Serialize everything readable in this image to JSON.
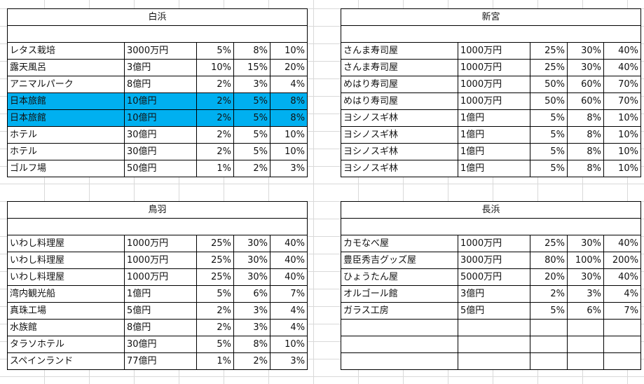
{
  "blocks": [
    {
      "id": "shirahama",
      "title": "白浜",
      "rows": [
        {
          "name": "レタス栽培",
          "cost": "3000万円",
          "p1": "5%",
          "p2": "8%",
          "p3": "10%",
          "hl": false
        },
        {
          "name": "露天風呂",
          "cost": "3億円",
          "p1": "10%",
          "p2": "15%",
          "p3": "20%",
          "hl": false
        },
        {
          "name": "アニマルパーク",
          "cost": "8億円",
          "p1": "2%",
          "p2": "3%",
          "p3": "4%",
          "hl": false
        },
        {
          "name": "日本旅館",
          "cost": "10億円",
          "p1": "2%",
          "p2": "5%",
          "p3": "8%",
          "hl": true
        },
        {
          "name": "日本旅館",
          "cost": "10億円",
          "p1": "2%",
          "p2": "5%",
          "p3": "8%",
          "hl": true
        },
        {
          "name": "ホテル",
          "cost": "30億円",
          "p1": "2%",
          "p2": "5%",
          "p3": "10%",
          "hl": false
        },
        {
          "name": "ホテル",
          "cost": "30億円",
          "p1": "2%",
          "p2": "5%",
          "p3": "10%",
          "hl": false
        },
        {
          "name": "ゴルフ場",
          "cost": "50億円",
          "p1": "1%",
          "p2": "2%",
          "p3": "3%",
          "hl": false
        }
      ]
    },
    {
      "id": "shingu",
      "title": "新宮",
      "rows": [
        {
          "name": "さんま寿司屋",
          "cost": "1000万円",
          "p1": "25%",
          "p2": "30%",
          "p3": "40%",
          "hl": false
        },
        {
          "name": "さんま寿司屋",
          "cost": "1000万円",
          "p1": "25%",
          "p2": "30%",
          "p3": "40%",
          "hl": false
        },
        {
          "name": "めはり寿司屋",
          "cost": "1000万円",
          "p1": "50%",
          "p2": "60%",
          "p3": "70%",
          "hl": false
        },
        {
          "name": "めはり寿司屋",
          "cost": "1000万円",
          "p1": "50%",
          "p2": "60%",
          "p3": "70%",
          "hl": false
        },
        {
          "name": "ヨシノスギ林",
          "cost": "1億円",
          "p1": "5%",
          "p2": "8%",
          "p3": "10%",
          "hl": false
        },
        {
          "name": "ヨシノスギ林",
          "cost": "1億円",
          "p1": "5%",
          "p2": "8%",
          "p3": "10%",
          "hl": false
        },
        {
          "name": "ヨシノスギ林",
          "cost": "1億円",
          "p1": "5%",
          "p2": "8%",
          "p3": "10%",
          "hl": false
        },
        {
          "name": "ヨシノスギ林",
          "cost": "1億円",
          "p1": "5%",
          "p2": "8%",
          "p3": "10%",
          "hl": false
        }
      ]
    },
    {
      "id": "toba",
      "title": "鳥羽",
      "rows": [
        {
          "name": "いわし料理屋",
          "cost": "1000万円",
          "p1": "25%",
          "p2": "30%",
          "p3": "40%",
          "hl": false
        },
        {
          "name": "いわし料理屋",
          "cost": "1000万円",
          "p1": "25%",
          "p2": "30%",
          "p3": "40%",
          "hl": false
        },
        {
          "name": "いわし料理屋",
          "cost": "1000万円",
          "p1": "25%",
          "p2": "30%",
          "p3": "40%",
          "hl": false
        },
        {
          "name": "湾内観光船",
          "cost": "1億円",
          "p1": "5%",
          "p2": "6%",
          "p3": "7%",
          "hl": false
        },
        {
          "name": "真珠工場",
          "cost": "5億円",
          "p1": "2%",
          "p2": "3%",
          "p3": "4%",
          "hl": false
        },
        {
          "name": "水族館",
          "cost": "8億円",
          "p1": "2%",
          "p2": "3%",
          "p3": "4%",
          "hl": false
        },
        {
          "name": "タラソホテル",
          "cost": "30億円",
          "p1": "5%",
          "p2": "8%",
          "p3": "10%",
          "hl": false
        },
        {
          "name": "スペインランド",
          "cost": "77億円",
          "p1": "1%",
          "p2": "2%",
          "p3": "3%",
          "hl": false
        }
      ]
    },
    {
      "id": "nagahama",
      "title": "長浜",
      "rows": [
        {
          "name": "カモなべ屋",
          "cost": "1000万円",
          "p1": "25%",
          "p2": "30%",
          "p3": "40%",
          "hl": false
        },
        {
          "name": "豊臣秀吉グッズ屋",
          "cost": "3000万円",
          "p1": "80%",
          "p2": "100%",
          "p3": "200%",
          "hl": false
        },
        {
          "name": "ひょうたん屋",
          "cost": "5000万円",
          "p1": "20%",
          "p2": "30%",
          "p3": "40%",
          "hl": false
        },
        {
          "name": "オルゴール館",
          "cost": "3億円",
          "p1": "2%",
          "p2": "3%",
          "p3": "4%",
          "hl": false
        },
        {
          "name": "ガラス工房",
          "cost": "5億円",
          "p1": "5%",
          "p2": "6%",
          "p3": "7%",
          "hl": false
        },
        {
          "name": "",
          "cost": "",
          "p1": "",
          "p2": "",
          "p3": "",
          "hl": false
        },
        {
          "name": "",
          "cost": "",
          "p1": "",
          "p2": "",
          "p3": "",
          "hl": false
        },
        {
          "name": "",
          "cost": "",
          "p1": "",
          "p2": "",
          "p3": "",
          "hl": false
        }
      ]
    }
  ],
  "colors": {
    "highlight": "#00b0f0"
  }
}
